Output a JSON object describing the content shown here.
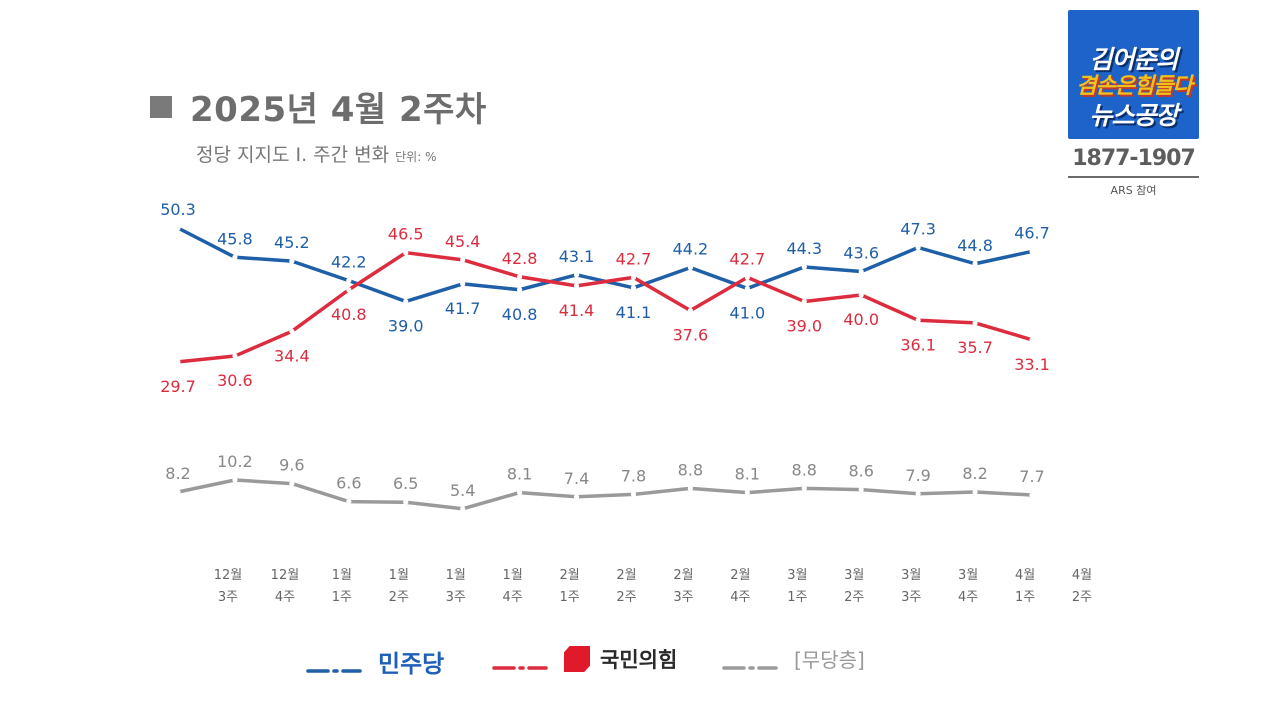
{
  "header": {
    "title": "2025년 4월 2주차",
    "subtitle": "정당 지지도 Ⅰ. 주간 변화",
    "unit": "단위: %"
  },
  "logo": {
    "line1": "김어준의",
    "line2": "겸손은힘들다",
    "line3": "뉴스공장",
    "phone": "1877-1907",
    "caption": "ARS 참여"
  },
  "legend": {
    "democratic": "민주당",
    "ppp": "국민의힘",
    "independent": "[무당층]"
  },
  "colors": {
    "democratic": "#1f5fa8",
    "ppp": "#dc2c3e",
    "independent": "#9a9a9a",
    "label_gray": "#888888"
  },
  "chart_data": {
    "type": "line",
    "categories": [
      [
        "12월",
        "3주"
      ],
      [
        "12월",
        "4주"
      ],
      [
        "1월",
        "1주"
      ],
      [
        "1월",
        "2주"
      ],
      [
        "1월",
        "3주"
      ],
      [
        "1월",
        "4주"
      ],
      [
        "2월",
        "1주"
      ],
      [
        "2월",
        "2주"
      ],
      [
        "2월",
        "3주"
      ],
      [
        "2월",
        "4주"
      ],
      [
        "3월",
        "1주"
      ],
      [
        "3월",
        "2주"
      ],
      [
        "3월",
        "3주"
      ],
      [
        "3월",
        "4주"
      ],
      [
        "4월",
        "1주"
      ],
      [
        "4월",
        "2주"
      ]
    ],
    "series": [
      {
        "name": "민주당",
        "color": "#1f5fa8",
        "values": [
          50.3,
          45.8,
          45.2,
          42.2,
          39.0,
          41.7,
          40.8,
          43.1,
          41.1,
          44.2,
          41.0,
          44.3,
          43.6,
          47.3,
          44.8,
          46.7
        ],
        "labels": [
          "50.3",
          "45.8",
          "45.2",
          "42.2",
          "39.0",
          "41.7",
          "40.8",
          "43.1",
          "41.1",
          "44.2",
          "41.0",
          "44.3",
          "43.6",
          "47.3",
          "44.8",
          "46.7"
        ]
      },
      {
        "name": "국민의힘",
        "color": "#dc2c3e",
        "values": [
          29.7,
          30.6,
          34.4,
          40.8,
          46.5,
          45.4,
          42.8,
          41.4,
          42.7,
          37.6,
          42.7,
          39.0,
          40.0,
          36.1,
          35.7,
          33.1
        ],
        "labels": [
          "29.7",
          "30.6",
          "34.4",
          "40.8",
          "46.5",
          "45.4",
          "42.8",
          "41.4",
          "42.7",
          "37.6",
          "42.7",
          "39.0",
          "40.0",
          "36.1",
          "35.7",
          "33.1"
        ]
      },
      {
        "name": "[무당층]",
        "color": "#9a9a9a",
        "values": [
          8.2,
          10.2,
          9.6,
          6.6,
          6.5,
          5.4,
          8.1,
          7.4,
          7.8,
          8.8,
          8.1,
          8.8,
          8.6,
          7.9,
          8.2,
          7.7
        ],
        "labels": [
          "8.2",
          "10.2",
          "9.6",
          "6.6",
          "6.5",
          "5.4",
          "8.1",
          "7.4",
          "7.8",
          "8.8",
          "8.1",
          "8.8",
          "8.6",
          "7.9",
          "8.2",
          "7.7"
        ]
      }
    ],
    "grid": false,
    "legend_position": "bottom"
  }
}
